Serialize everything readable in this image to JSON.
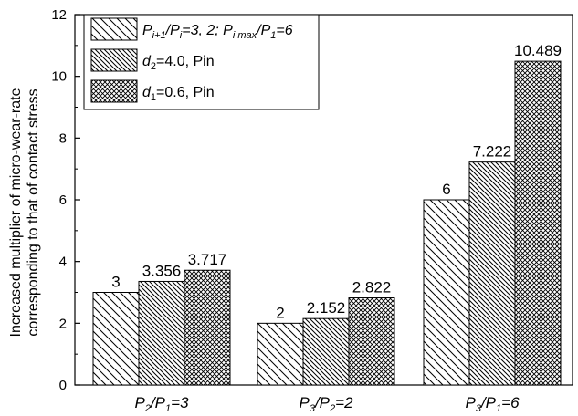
{
  "chart_data": {
    "type": "bar",
    "categories": [
      {
        "a": "P",
        "a_sub": "2",
        "b": "P",
        "b_sub": "1",
        "rest": "=3"
      },
      {
        "a": "P",
        "a_sub": "3",
        "b": "P",
        "b_sub": "2",
        "rest": "=2"
      },
      {
        "a": "P",
        "a_sub": "3",
        "b": "P",
        "b_sub": "1",
        "rest": "=6"
      }
    ],
    "series": [
      {
        "name": "P_{i+1}/P_{i}=3, 2; P_{imax}/P_{1}=6",
        "pattern": "diag-back",
        "values": [
          3,
          2,
          6
        ],
        "labels": [
          "3",
          "2",
          "6"
        ]
      },
      {
        "name": "d_{2}=4.0, Pin",
        "pattern": "diag-back-dense",
        "values": [
          3.356,
          2.152,
          7.222
        ],
        "labels": [
          "3.356",
          "2.152",
          "7.222"
        ]
      },
      {
        "name": "d_{1}=0.6, Pin",
        "pattern": "crosshatch",
        "values": [
          3.717,
          2.822,
          10.489
        ],
        "labels": [
          "3.717",
          "2.822",
          "10.489"
        ]
      }
    ],
    "ylabel_line1": "Increased multiplier of micro-wear-rate",
    "ylabel_line2": "corresponding to that of contact stress",
    "ylim": [
      0,
      12
    ],
    "yticks": [
      "0",
      "2",
      "4",
      "6",
      "8",
      "10",
      "12"
    ],
    "legend_position": "top-left",
    "grid": false
  },
  "legend": {
    "item1": {
      "p1": "P",
      "s1": "i+1",
      "slash": "/",
      "p2": "P",
      "s2": "i",
      "mid": "=3, 2; ",
      "p3": "P",
      "s3": "i max",
      "p4": "P",
      "s4": "1",
      "end": "=6"
    },
    "item2": {
      "d": "d",
      "sub": "2",
      "rest": "=4.0, Pin"
    },
    "item3": {
      "d": "d",
      "sub": "1",
      "rest": "=0.6, Pin"
    }
  }
}
